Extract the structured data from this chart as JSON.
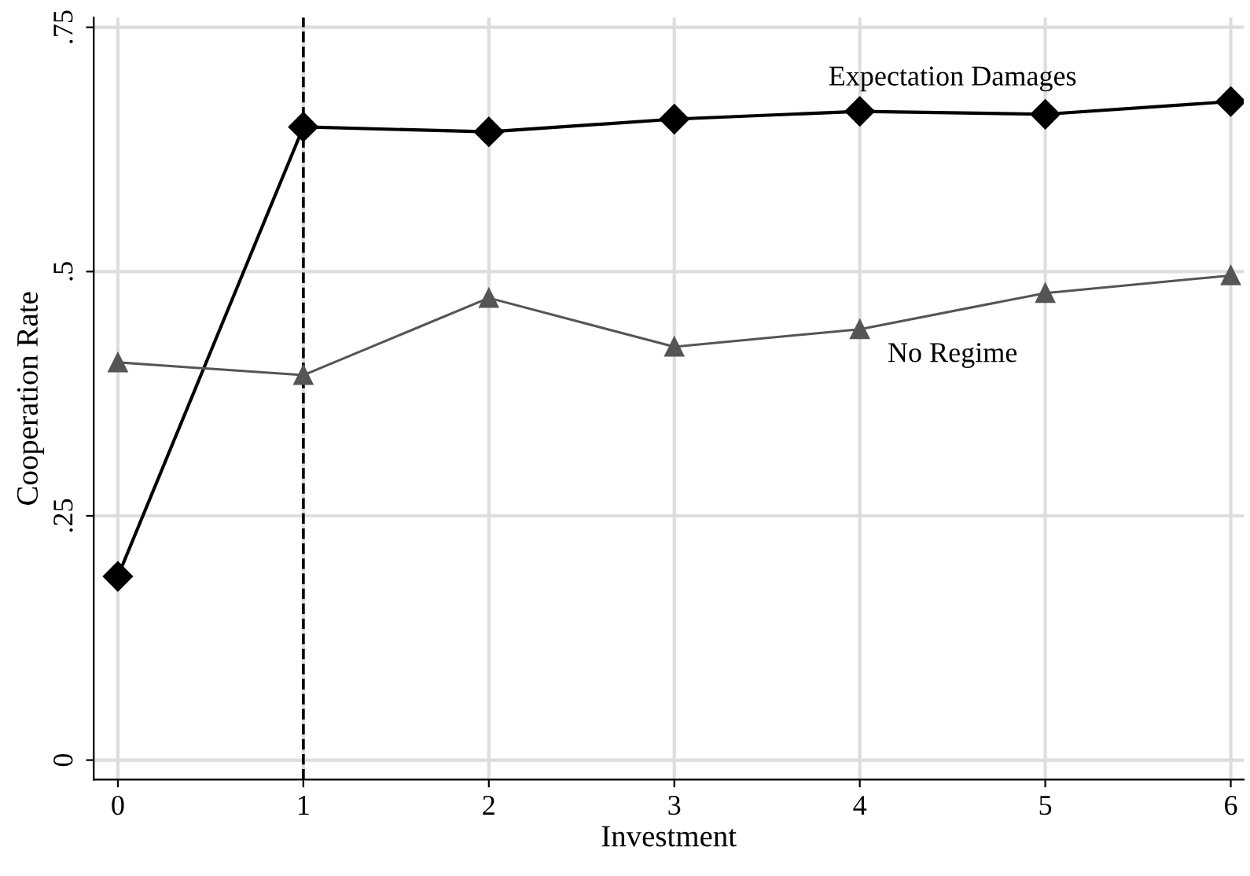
{
  "chart_data": {
    "type": "line",
    "xlabel": "Investment",
    "ylabel": "Cooperation Rate",
    "x": [
      0,
      1,
      2,
      3,
      4,
      5,
      6
    ],
    "series": [
      {
        "name": "Expectation Damages",
        "color": "#000000",
        "marker": "diamond",
        "values": [
          0.188,
          0.648,
          0.643,
          0.656,
          0.664,
          0.661,
          0.674
        ]
      },
      {
        "name": "No Regime",
        "color": "#555555",
        "marker": "triangle",
        "values": [
          0.407,
          0.394,
          0.473,
          0.423,
          0.441,
          0.478,
          0.496
        ]
      }
    ],
    "xlim": [
      -0.13,
      6.07
    ],
    "ylim": [
      -0.02,
      0.76
    ],
    "xticks": [
      0,
      1,
      2,
      3,
      4,
      5,
      6
    ],
    "yticks": [
      {
        "value": 0,
        "label": "0"
      },
      {
        "value": 0.25,
        "label": ".25"
      },
      {
        "value": 0.5,
        "label": ".5"
      },
      {
        "value": 0.75,
        "label": ".75"
      }
    ],
    "ref_lines": [
      {
        "axis": "x",
        "value": 1,
        "label": null,
        "color": "#000000",
        "line_style": "dashed"
      }
    ],
    "grid": true,
    "legend": false,
    "line_style": "solid"
  }
}
